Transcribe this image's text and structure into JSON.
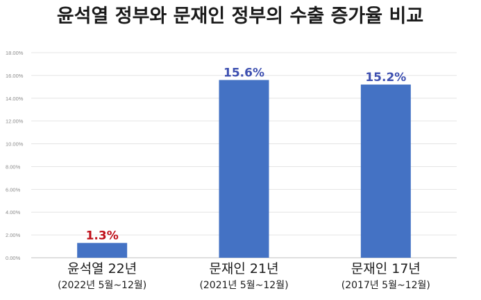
{
  "chart_data": {
    "type": "bar",
    "title": "윤석열 정부와 문재인 정부의 수출 증가율 비교",
    "ylim": [
      0,
      18
    ],
    "yticks": [
      "0.00%",
      "2.00%",
      "4.00%",
      "6.00%",
      "8.00%",
      "10.00%",
      "12.00%",
      "14.00%",
      "16.00%",
      "18.00%"
    ],
    "grid": true,
    "categories": [
      "윤석열 22년",
      "문재인 21년",
      "문재인 17년"
    ],
    "category_subtitles": [
      "(2022년 5월~12월)",
      "(2021년 5월~12월)",
      "(2017년 5월~12월)"
    ],
    "values": [
      1.3,
      15.6,
      15.2
    ],
    "value_labels": [
      "1.3%",
      "15.6%",
      "15.2%"
    ],
    "bar_color": "#4472c4",
    "value_label_colors": [
      "#c0101a",
      "#3d4fb0",
      "#3d4fb0"
    ]
  }
}
